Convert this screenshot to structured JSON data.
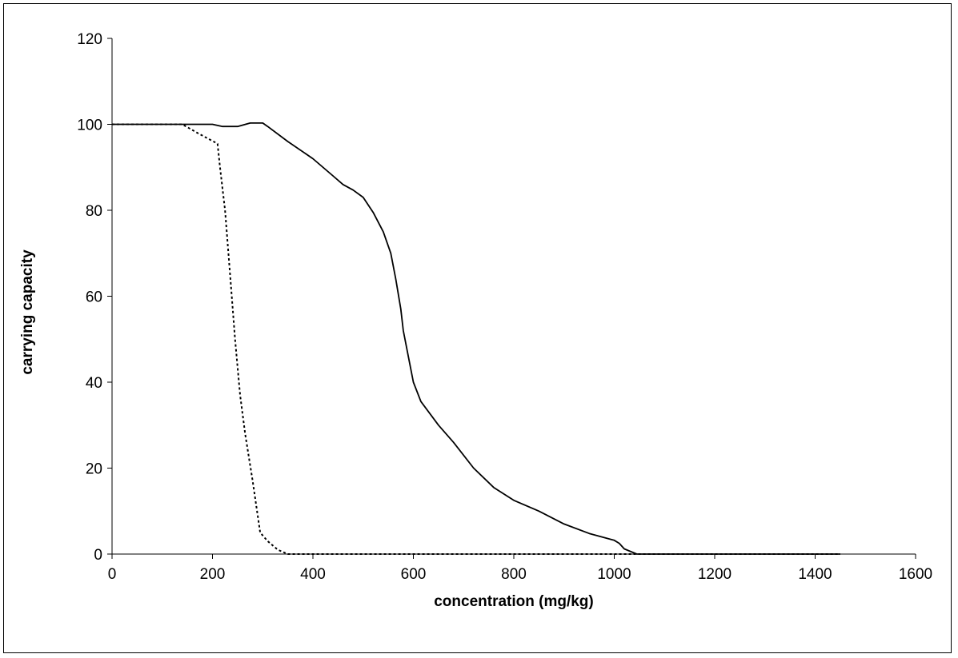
{
  "chart_data": {
    "type": "line",
    "title": "",
    "xlabel": "concentration (mg/kg)",
    "ylabel": "carrying capacity",
    "xlim": [
      0,
      1600
    ],
    "ylim": [
      0,
      120
    ],
    "x_ticks": [
      "0",
      "200",
      "400",
      "600",
      "800",
      "1000",
      "1200",
      "1400",
      "1600"
    ],
    "y_ticks": [
      "0",
      "20",
      "40",
      "60",
      "80",
      "100",
      "120"
    ],
    "grid": false,
    "legend": "none",
    "series": [
      {
        "style": "solid",
        "color": "#000000",
        "points": [
          [
            0,
            100
          ],
          [
            200,
            100
          ],
          [
            220,
            99.5
          ],
          [
            250,
            99.5
          ],
          [
            275,
            100.3
          ],
          [
            300,
            100.3
          ],
          [
            310,
            99.5
          ],
          [
            350,
            96
          ],
          [
            400,
            92
          ],
          [
            440,
            88
          ],
          [
            460,
            86
          ],
          [
            480,
            84.7
          ],
          [
            500,
            83
          ],
          [
            520,
            79.5
          ],
          [
            540,
            75
          ],
          [
            555,
            70
          ],
          [
            565,
            64
          ],
          [
            575,
            57
          ],
          [
            580,
            52
          ],
          [
            590,
            46
          ],
          [
            600,
            40
          ],
          [
            615,
            35.5
          ],
          [
            650,
            30
          ],
          [
            680,
            26
          ],
          [
            720,
            20
          ],
          [
            760,
            15.5
          ],
          [
            800,
            12.5
          ],
          [
            850,
            10
          ],
          [
            900,
            7
          ],
          [
            950,
            4.8
          ],
          [
            1000,
            3.2
          ],
          [
            1010,
            2.5
          ],
          [
            1020,
            1.2
          ],
          [
            1045,
            0
          ],
          [
            1450,
            0
          ]
        ]
      },
      {
        "style": "dashed",
        "color": "#000000",
        "points": [
          [
            0,
            100
          ],
          [
            140,
            100
          ],
          [
            170,
            98
          ],
          [
            210,
            95.5
          ],
          [
            215,
            90
          ],
          [
            225,
            80
          ],
          [
            235,
            65
          ],
          [
            245,
            50
          ],
          [
            255,
            37
          ],
          [
            265,
            28
          ],
          [
            280,
            17
          ],
          [
            295,
            5
          ],
          [
            310,
            3
          ],
          [
            330,
            1
          ],
          [
            350,
            0
          ],
          [
            1450,
            0
          ]
        ]
      }
    ]
  }
}
